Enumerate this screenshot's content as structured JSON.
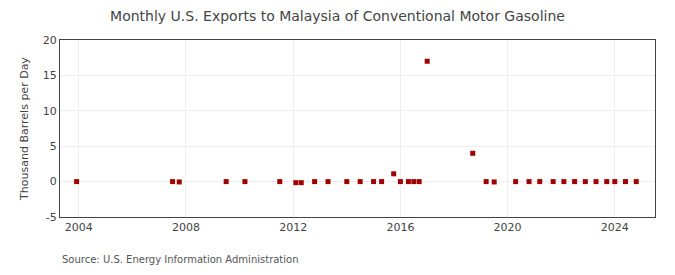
{
  "chart_data": {
    "type": "scatter",
    "title": "Monthly U.S. Exports to Malaysia of Conventional Motor Gasoline",
    "y_label": "Thousand Barrels per Day",
    "annotations": [
      "Source: U.S. Energy Information Administration"
    ],
    "x": [
      2003.92,
      2007.5,
      2007.75,
      2009.5,
      2010.2,
      2011.5,
      2012.1,
      2012.3,
      2012.8,
      2013.3,
      2014.0,
      2014.5,
      2015.0,
      2015.3,
      2015.75,
      2016.0,
      2016.3,
      2016.5,
      2016.7,
      2017.0,
      2018.7,
      2019.2,
      2019.5,
      2020.3,
      2020.8,
      2021.2,
      2021.7,
      2022.1,
      2022.5,
      2022.9,
      2023.3,
      2023.7,
      2024.0,
      2024.4,
      2024.8
    ],
    "values": [
      0.0,
      0.0,
      -0.05,
      0.0,
      0.0,
      0.0,
      -0.15,
      -0.15,
      0.0,
      0.0,
      0.0,
      0.0,
      0.0,
      0.0,
      1.1,
      0.0,
      0.0,
      0.0,
      0.0,
      17.0,
      4.0,
      0.0,
      -0.05,
      0.0,
      0.0,
      0.0,
      0.0,
      0.0,
      0.0,
      0.0,
      0.0,
      0.0,
      0.0,
      0.0,
      0.0
    ],
    "color": "#a00000",
    "marker": "square",
    "xlim": [
      2003.3,
      2025.5
    ],
    "xticks": [
      2004,
      2008,
      2012,
      2016,
      2020,
      2024
    ],
    "ylim": [
      -5,
      20
    ],
    "yticks": [
      -5,
      0,
      5,
      10,
      15,
      20
    ],
    "grid": true
  }
}
